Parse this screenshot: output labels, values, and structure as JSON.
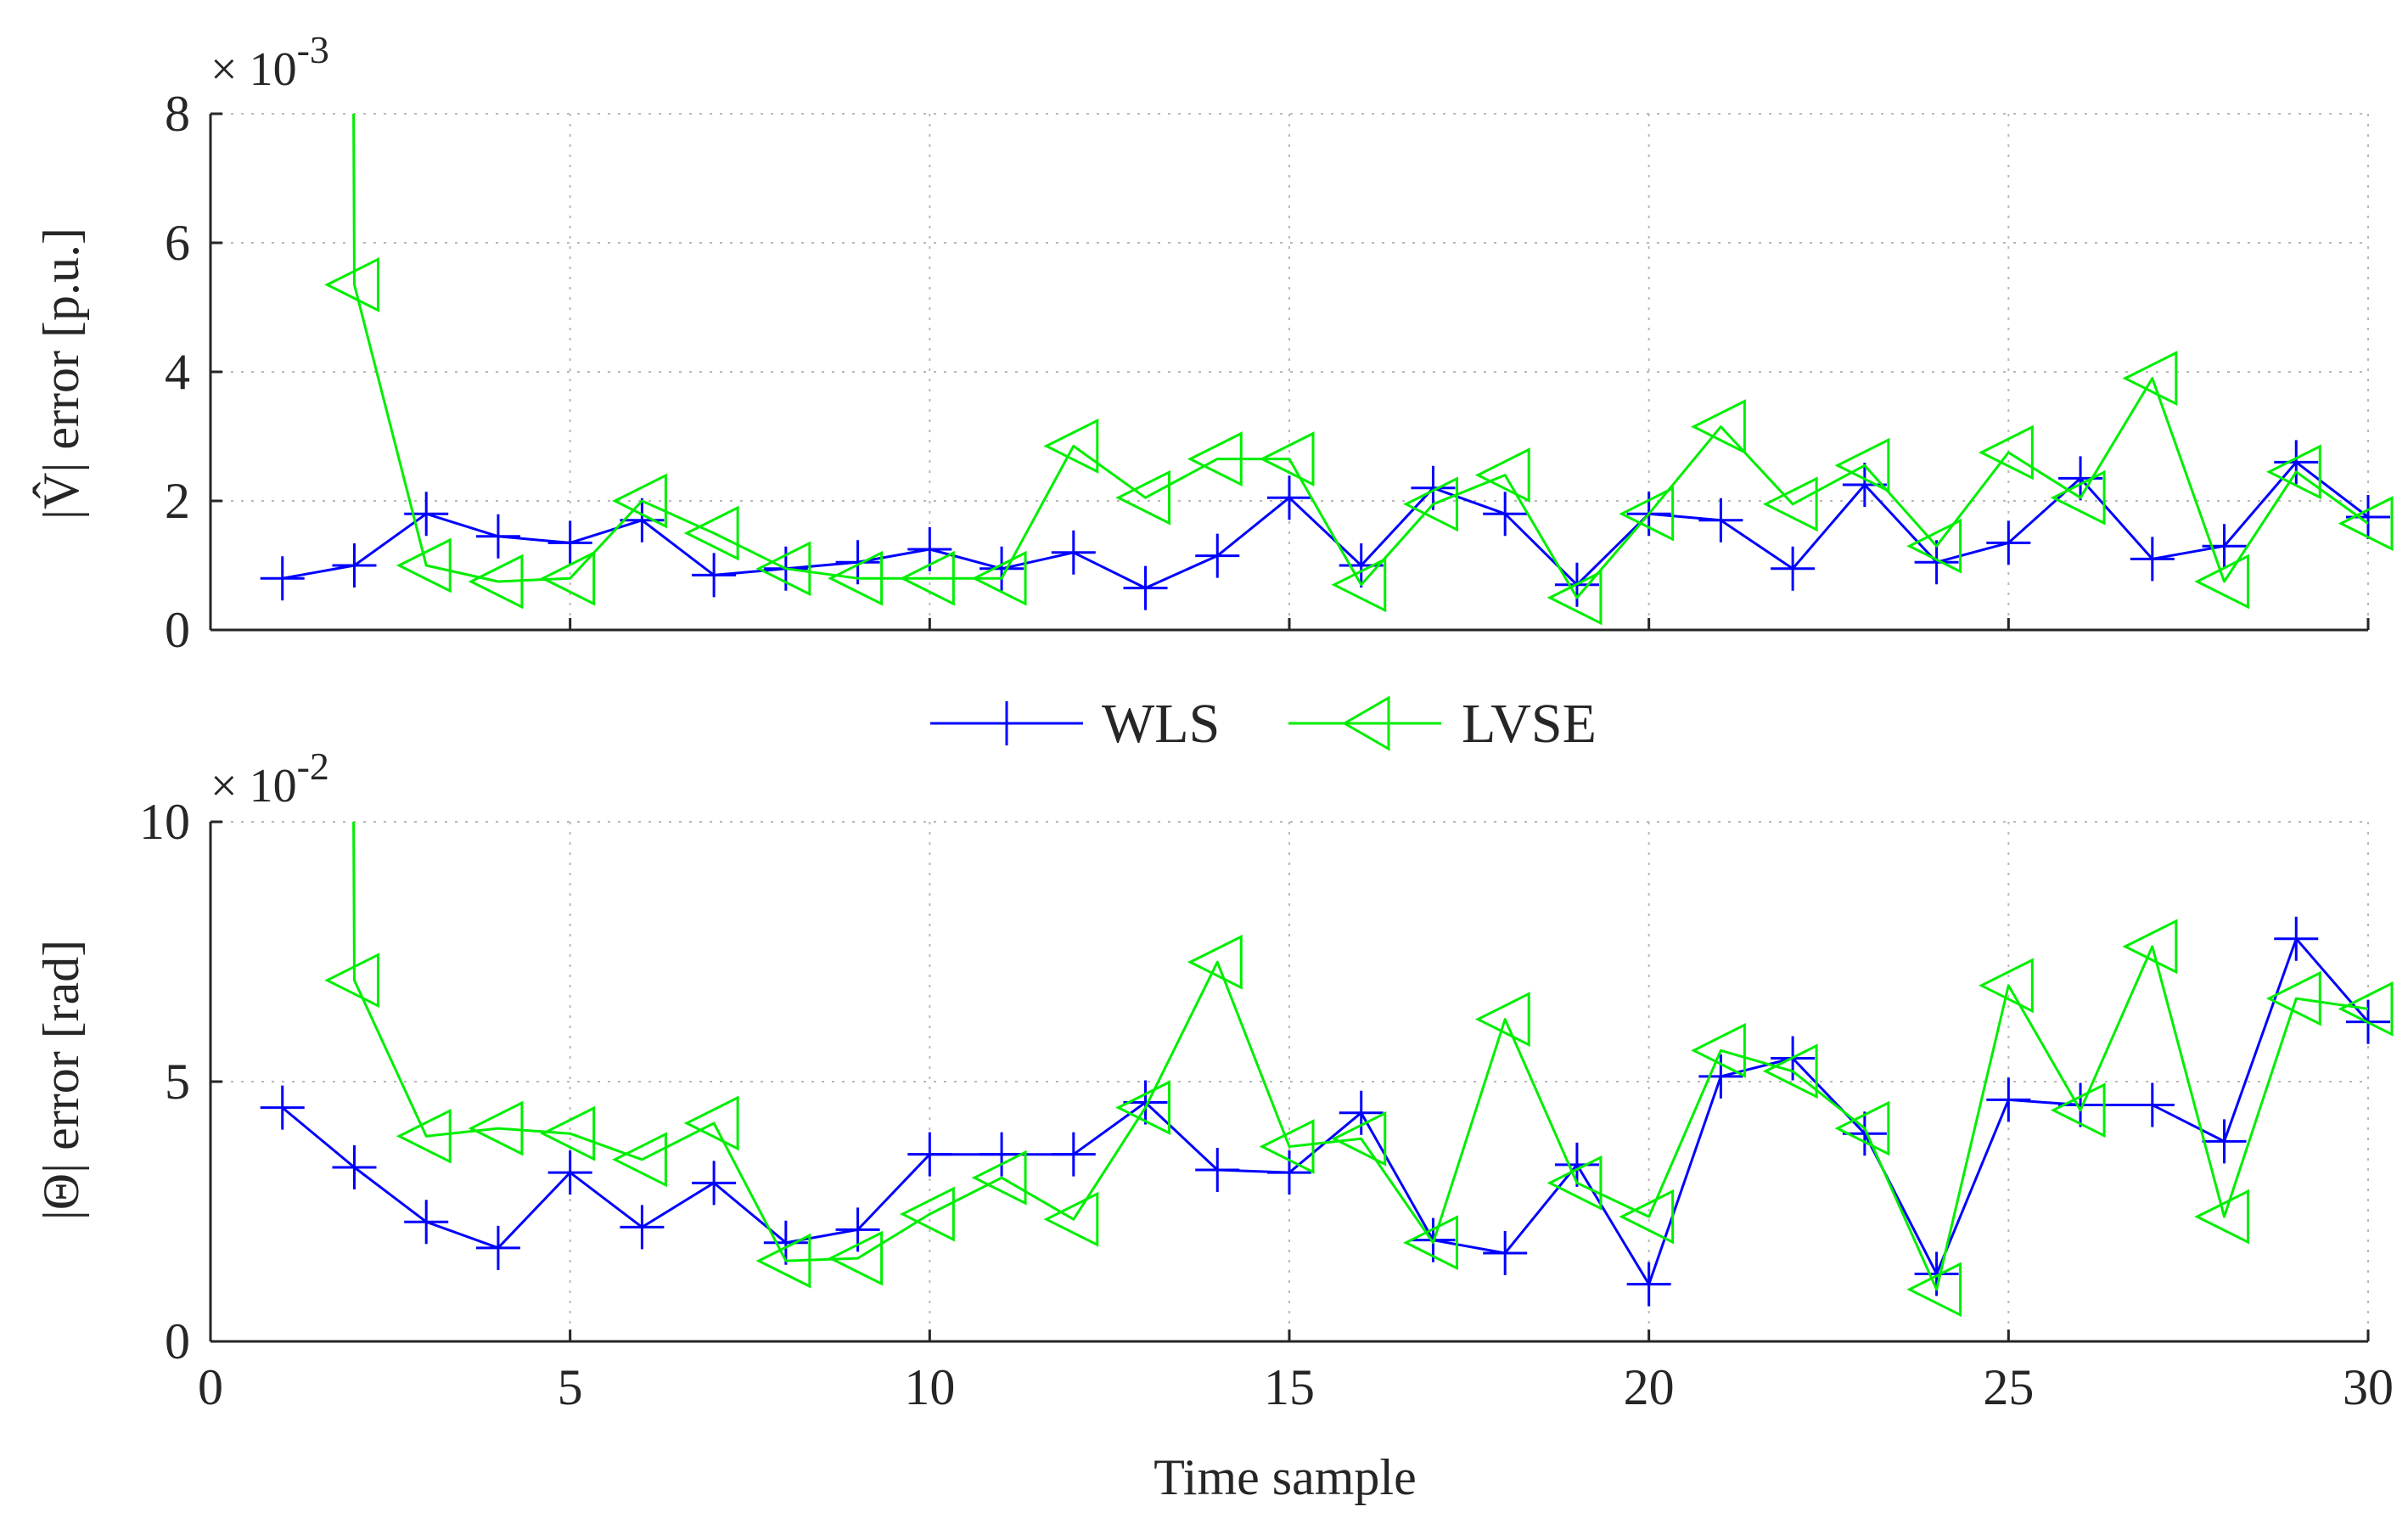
{
  "chart_data": [
    {
      "type": "line",
      "xlabel": "",
      "ylabel": "|V̂| error [p.u.]",
      "exponent_label": "× 10^-3",
      "xlim": [
        0,
        30
      ],
      "ylim": [
        0,
        8
      ],
      "xticks": [
        0,
        5,
        10,
        15,
        20,
        25,
        30
      ],
      "yticks": [
        0,
        2,
        4,
        6,
        8
      ],
      "x_tick_labels_visible": false,
      "grid": true,
      "series": [
        {
          "name": "WLS",
          "color": "#0000ff",
          "marker": "plus",
          "x": [
            1,
            2,
            3,
            4,
            5,
            6,
            7,
            8,
            9,
            10,
            11,
            12,
            13,
            14,
            15,
            16,
            17,
            18,
            19,
            20,
            21,
            22,
            23,
            24,
            25,
            26,
            27,
            28,
            29,
            30
          ],
          "values": [
            0.8,
            1.0,
            1.8,
            1.45,
            1.35,
            1.7,
            0.85,
            0.95,
            1.05,
            1.25,
            0.95,
            1.2,
            0.65,
            1.15,
            2.05,
            1.0,
            2.2,
            1.8,
            0.7,
            1.8,
            1.7,
            0.95,
            2.25,
            1.05,
            1.35,
            2.35,
            1.1,
            1.3,
            2.6,
            1.75
          ]
        },
        {
          "name": "LVSE",
          "color": "#00ee00",
          "marker": "triangle-left",
          "x": [
            1.99,
            2,
            3,
            4,
            5,
            6,
            7,
            8,
            9,
            10,
            11,
            12,
            13,
            14,
            15,
            16,
            17,
            18,
            19,
            20,
            21,
            22,
            23,
            24,
            25,
            26,
            27,
            28,
            29,
            30
          ],
          "values": [
            8.0,
            5.35,
            1.0,
            0.75,
            0.8,
            2.0,
            1.5,
            0.95,
            0.8,
            0.8,
            0.8,
            2.85,
            2.05,
            2.65,
            2.65,
            0.7,
            1.95,
            2.4,
            0.5,
            1.8,
            3.15,
            1.95,
            2.55,
            1.3,
            2.75,
            2.05,
            3.9,
            0.75,
            2.45,
            1.65
          ]
        }
      ]
    },
    {
      "type": "line",
      "xlabel": "Time sample",
      "ylabel": "|Θ| error [rad]",
      "exponent_label": "× 10^-2",
      "xlim": [
        0,
        30
      ],
      "ylim": [
        0,
        10
      ],
      "xticks": [
        0,
        5,
        10,
        15,
        20,
        25,
        30
      ],
      "yticks": [
        0,
        5,
        10
      ],
      "x_tick_labels_visible": true,
      "grid": true,
      "series": [
        {
          "name": "WLS",
          "color": "#0000ff",
          "marker": "plus",
          "x": [
            1,
            2,
            3,
            4,
            5,
            6,
            7,
            8,
            9,
            10,
            11,
            12,
            13,
            14,
            15,
            16,
            17,
            18,
            19,
            20,
            21,
            22,
            23,
            24,
            25,
            26,
            27,
            28,
            29,
            30
          ],
          "values": [
            4.5,
            3.35,
            2.3,
            1.8,
            3.25,
            2.2,
            3.05,
            1.9,
            2.15,
            3.6,
            3.6,
            3.6,
            4.6,
            3.3,
            3.25,
            4.4,
            1.95,
            1.7,
            3.4,
            1.1,
            5.1,
            5.45,
            4.0,
            1.3,
            4.65,
            4.55,
            4.55,
            3.85,
            7.75,
            6.15
          ]
        },
        {
          "name": "LVSE",
          "color": "#00ee00",
          "marker": "triangle-left",
          "x": [
            1.99,
            2,
            3,
            4,
            5,
            6,
            7,
            8,
            9,
            10,
            11,
            12,
            13,
            14,
            15,
            16,
            17,
            18,
            19,
            20,
            21,
            22,
            23,
            24,
            25,
            26,
            27,
            28,
            29,
            30
          ],
          "values": [
            10.0,
            6.95,
            3.95,
            4.1,
            4.0,
            3.5,
            4.2,
            1.55,
            1.6,
            2.45,
            3.15,
            2.35,
            4.5,
            7.3,
            3.75,
            3.9,
            1.9,
            6.2,
            3.05,
            2.4,
            5.6,
            5.2,
            4.1,
            1.0,
            6.85,
            4.45,
            7.6,
            2.4,
            6.6,
            6.4
          ]
        }
      ]
    }
  ],
  "legend": {
    "placement": "center-between-plots",
    "entries": [
      "WLS",
      "LVSE"
    ]
  }
}
